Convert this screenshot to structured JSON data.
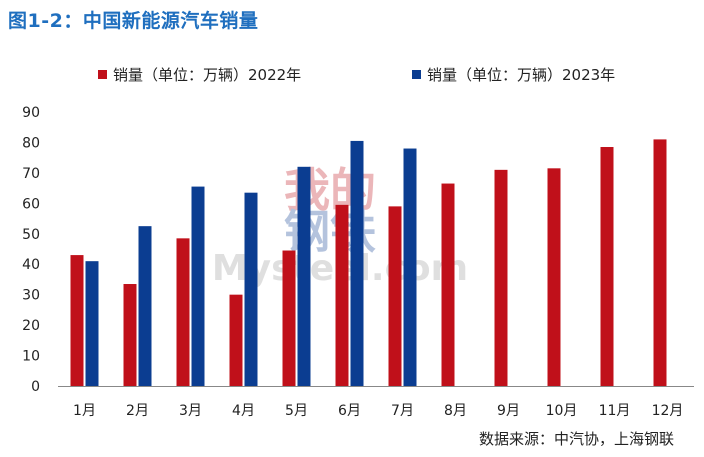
{
  "figure": {
    "title": "图1-2：中国新能源汽车销量",
    "source": "数据来源：中汽协，上海钢联",
    "watermark": {
      "cn_top": "我的",
      "cn_bottom": "钢铁",
      "en": "Mysteel.com"
    }
  },
  "colors": {
    "series_2022": "#c0101a",
    "series_2023": "#0b3d91",
    "title": "#1f6fbf"
  },
  "chart_data": {
    "type": "bar",
    "categories": [
      "1月",
      "2月",
      "3月",
      "4月",
      "5月",
      "6月",
      "7月",
      "8月",
      "9月",
      "10月",
      "11月",
      "12月"
    ],
    "series": [
      {
        "name": "销量（单位：万辆）2022年",
        "values": [
          43,
          33.5,
          48.5,
          30,
          44.5,
          59.5,
          59,
          66.5,
          71,
          71.5,
          78.5,
          81
        ]
      },
      {
        "name": "销量（单位：万辆）2023年",
        "values": [
          41,
          52.5,
          65.5,
          63.5,
          72,
          80.5,
          78,
          null,
          null,
          null,
          null,
          null
        ]
      }
    ],
    "yticks": [
      0,
      10,
      20,
      30,
      40,
      50,
      60,
      70,
      80,
      90
    ],
    "ylim": [
      0,
      90
    ],
    "grid": false,
    "legend_position": "top"
  }
}
